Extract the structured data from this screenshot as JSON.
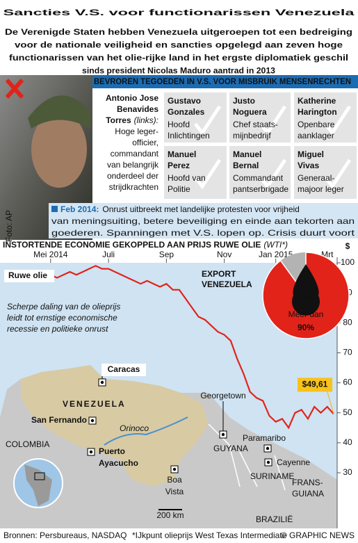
{
  "header": {
    "title": "Sancties V.S. voor functionarissen Venezuela",
    "subtitle_lines": [
      "De Verenigde Staten hebben Venezuela uitgeroepen tot een bedreiging",
      "voor de nationale veiligheid en sancties opgelegd aan zeven hoge",
      "functionarissen van het olie-rijke land in het ergste diplomatiek geschil",
      "sinds president Nicolas Maduro aantrad in 2013"
    ]
  },
  "banner": "BEVROREN TEGOEDEN IN V.S. VOOR MISBRUIK MENSENRECHTEN",
  "photo_credit": "Foto: AP",
  "main_person": {
    "name_lines": [
      "Antonio Jose",
      "Benavides",
      "Torres"
    ],
    "note": "(links):",
    "description_lines": [
      "Hoge leger-",
      "officier,",
      "commandant",
      "van belangrijk",
      "onderdeel der",
      "strijdkrachten"
    ]
  },
  "people": [
    {
      "name_lines": [
        "Gustavo",
        "Gonzales"
      ],
      "role_lines": [
        "Hoofd",
        "Inlichtingen"
      ]
    },
    {
      "name_lines": [
        "Justo",
        "Noguera"
      ],
      "role_lines": [
        "Chef staats-",
        "mijnbedrijf"
      ]
    },
    {
      "name_lines": [
        "Katherine",
        "Harington"
      ],
      "role_lines": [
        "Openbare",
        "aanklager"
      ]
    },
    {
      "name_lines": [
        "Manuel",
        "Perez"
      ],
      "role_lines": [
        "Hoofd van",
        "Politie"
      ]
    },
    {
      "name_lines": [
        "Manuel",
        "Bernal"
      ],
      "role_lines": [
        "Commandant",
        "pantserbrigade"
      ]
    },
    {
      "name_lines": [
        "Miguel",
        "Vivas"
      ],
      "role_lines": [
        "Generaal-",
        "majoor leger"
      ]
    }
  ],
  "timeline": {
    "date": "Feb 2014:",
    "text_lines": [
      "Onrust uitbreekt met landelijke protesten voor vrijheid",
      "van meningsuiting, betere beveiliging en einde aan tekorten aan",
      "goederen. Spanningen met V.S. lopen op. Crisis duurt voort"
    ]
  },
  "chart_data": [
    {
      "type": "line",
      "title": "INSTORTENDE ECONOMIE GEKOPPELD AAN PRIJS RUWE OLIE",
      "title_note": "(WTI*)",
      "y_unit": "$",
      "categories": [
        null,
        null,
        null,
        null,
        null,
        null,
        null,
        "Mei 2014",
        null,
        null,
        null,
        null,
        null,
        null,
        null,
        null,
        "Juli",
        null,
        null,
        null,
        null,
        null,
        null,
        null,
        null,
        "Sep",
        null,
        null,
        null,
        null,
        null,
        null,
        null,
        null,
        "Nov",
        null,
        null,
        null,
        null,
        null,
        null,
        null,
        "Jan 2015",
        null,
        null,
        null,
        null,
        null,
        null,
        null,
        "Mrt",
        null
      ],
      "series": [
        {
          "name": "Ruwe olie",
          "color": "#e2231a",
          "values": [
            95,
            96,
            96,
            97,
            95,
            96,
            97,
            96,
            95,
            96,
            97,
            96,
            97,
            98,
            99,
            98,
            98,
            97,
            96,
            95,
            94,
            93,
            94,
            93,
            92,
            93,
            91,
            91,
            88,
            85,
            82,
            81,
            79,
            77,
            76,
            74,
            68,
            63,
            57,
            55,
            54,
            49,
            47,
            48,
            45,
            50,
            51,
            48,
            52,
            50,
            52,
            49.61
          ],
          "value_labels": [
            null,
            null,
            null,
            null,
            null,
            null,
            null,
            null,
            null,
            null,
            null,
            null,
            null,
            null,
            null,
            null,
            null,
            null,
            null,
            null,
            null,
            null,
            null,
            null,
            null,
            null,
            null,
            null,
            null,
            null,
            null,
            null,
            null,
            null,
            null,
            null,
            null,
            null,
            null,
            null,
            null,
            null,
            null,
            null,
            null,
            null,
            null,
            null,
            null,
            null,
            null,
            "$49,61"
          ]
        }
      ],
      "annotation_lines": [
        "Scherpe daling van de olieprijs",
        "leidt tot ernstige economische",
        "recessie en politieke onrust"
      ],
      "ylim": [
        30,
        100
      ],
      "yticks": [
        30,
        40,
        50,
        60,
        70,
        80,
        90,
        100
      ]
    },
    {
      "type": "pie",
      "title_lines": [
        "EXPORT",
        "VENEZUELA"
      ],
      "categories": [
        "Olie"
      ],
      "values": [
        90
      ],
      "value_labels": [
        "90%"
      ],
      "label_prefix": "Meer dan",
      "colors": [
        "#e2231a"
      ],
      "rest_color": "#b3b3b3"
    }
  ],
  "map": {
    "country": "VENEZUELA",
    "river": "Orinoco",
    "scale": "200 km",
    "neighbors": [
      {
        "name_lines": [
          "COLOMBIA"
        ]
      },
      {
        "name_lines": [
          "GUYANA"
        ]
      },
      {
        "name_lines": [
          "SURINAME"
        ]
      },
      {
        "name_lines": [
          "FRANS-",
          "GUIANA"
        ]
      },
      {
        "name_lines": [
          "BRAZILIË"
        ]
      }
    ],
    "cities": [
      {
        "name_lines": [
          "Caracas"
        ]
      },
      {
        "name_lines": [
          "San Fernando"
        ]
      },
      {
        "name_lines": [
          "Puerto",
          "Ayacucho"
        ]
      },
      {
        "name_lines": [
          "Georgetown"
        ]
      },
      {
        "name_lines": [
          "Paramaribo"
        ]
      },
      {
        "name_lines": [
          "Cayenne"
        ]
      },
      {
        "name_lines": [
          "Boa",
          "Vista"
        ]
      }
    ]
  },
  "footer": {
    "sources": "Bronnen: Persbureaus, NASDAQ",
    "note": "*IJkpunt olieprijs West Texas Intermediate",
    "credit": "© GRAPHIC NEWS"
  }
}
